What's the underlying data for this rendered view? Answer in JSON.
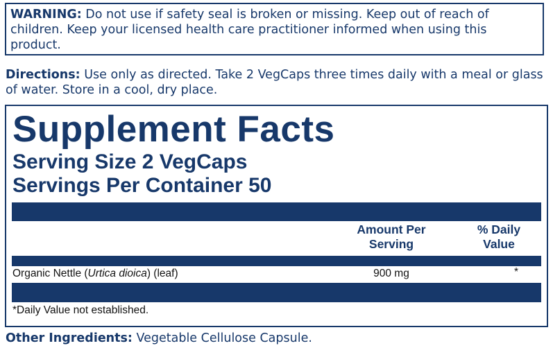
{
  "warning": {
    "label": "WARNING:",
    "text": "Do not use if safety seal is broken or missing. Keep out of reach of children. Keep your licensed health care practitioner informed when using this product."
  },
  "directions": {
    "label": "Directions:",
    "text": "Use only as directed. Take 2 VegCaps three times daily with a meal or glass of water. Store in a cool, dry place."
  },
  "facts": {
    "title": "Supplement Facts",
    "serving_size": "Serving Size 2 VegCaps",
    "servings_per_container": "Servings Per Container 50",
    "headers": [
      "Amount Per Serving",
      "% Daily Value"
    ],
    "rows": [
      {
        "name": "Organic Nettle (",
        "name_italic": "Urtica dioica",
        "name_suffix": ") (leaf)",
        "amount": "900 mg",
        "daily_value": "*"
      }
    ],
    "footnote": "*Daily Value not established."
  },
  "other_ingredients": {
    "label": "Other Ingredients:",
    "text": "Vegetable Cellulose Capsule."
  }
}
